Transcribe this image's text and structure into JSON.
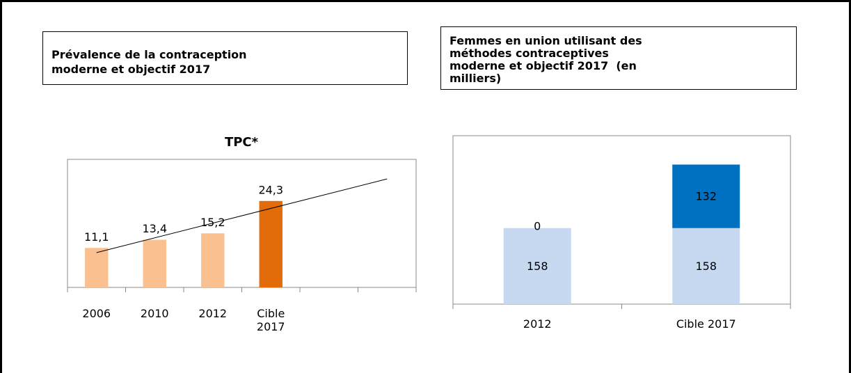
{
  "chart_data": [
    {
      "type": "bar",
      "heading": [
        "Prévalence de la contraception",
        "moderne et objectif 2017"
      ],
      "title": "TPC*",
      "categories": [
        "2006",
        "2010",
        "2012",
        "Cible 2017",
        null,
        null
      ],
      "values": [
        11.1,
        13.4,
        15.2,
        24.3,
        null,
        null
      ],
      "value_labels": [
        "11,1",
        "13,4",
        "15,2",
        "24,3",
        null,
        null
      ],
      "colors": [
        "#fac090",
        "#fac090",
        "#fac090",
        "#e36c0a",
        null,
        null
      ],
      "trendline": "linear",
      "ylim": [
        0,
        36
      ]
    },
    {
      "type": "stacked_bar",
      "heading": [
        "Femmes en union utilisant des",
        "méthodes contraceptives",
        "moderne et objectif 2017  (en",
        "milliers)"
      ],
      "categories": [
        "2012",
        "Cible 2017"
      ],
      "series": [
        {
          "color": "#c6d9f1",
          "values": [
            158,
            158
          ]
        },
        {
          "color": "#0070c0",
          "values": [
            0,
            132
          ]
        }
      ],
      "ylim": [
        0,
        350
      ]
    }
  ]
}
